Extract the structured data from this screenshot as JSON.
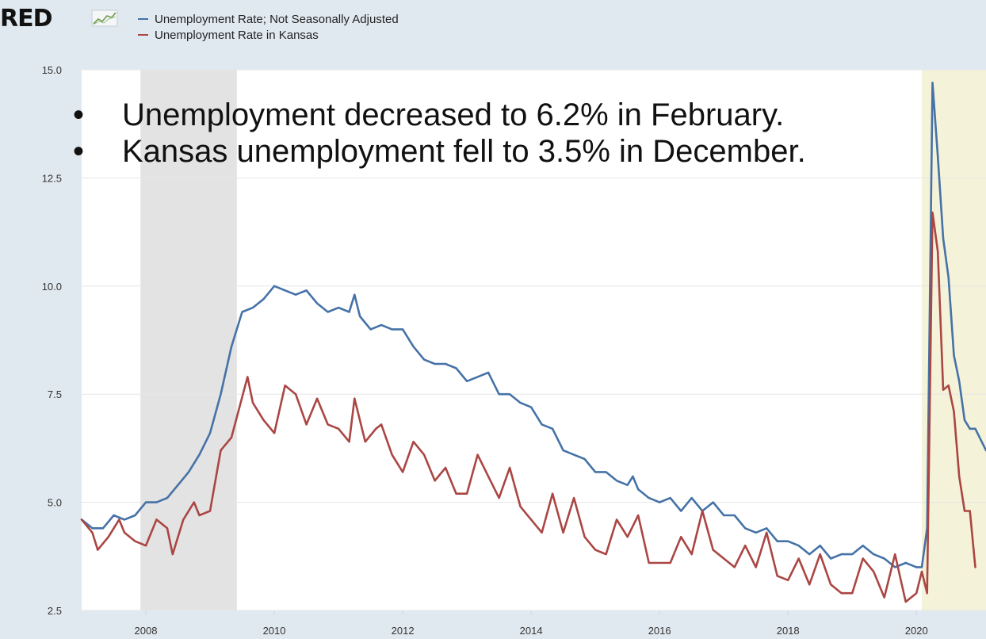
{
  "logo": {
    "text": "RED"
  },
  "legend": [
    {
      "label": "Unemployment Rate; Not Seasonally Adjusted",
      "color": "#4572a7"
    },
    {
      "label": "Unemployment Rate in Kansas",
      "color": "#aa4643"
    }
  ],
  "annotations": [
    "Unemployment decreased to 6.2% in February.",
    "Kansas unemployment fell to 3.5% in December."
  ],
  "chart_data": {
    "type": "line",
    "xlabel": "",
    "ylabel": "",
    "x_range": [
      "2007-01",
      "2021-02"
    ],
    "ylim": [
      2.5,
      15.0
    ],
    "y_ticks": [
      "2.5",
      "5.0",
      "7.5",
      "10.0",
      "12.5",
      "15.0"
    ],
    "x_ticks": [
      "2008",
      "2010",
      "2012",
      "2014",
      "2016",
      "2018",
      "2020"
    ],
    "grid": true,
    "recessions": [
      {
        "start": "2007-12",
        "end": "2009-06",
        "color": "#e3e3e3"
      },
      {
        "start": "2020-02",
        "end": "2021-02",
        "color": "#f4f2d9"
      }
    ],
    "series": [
      {
        "name": "Unemployment Rate; Not Seasonally Adjusted",
        "color": "#4572a7",
        "points": [
          [
            "2007-01",
            4.6
          ],
          [
            "2007-03",
            4.4
          ],
          [
            "2007-05",
            4.4
          ],
          [
            "2007-07",
            4.7
          ],
          [
            "2007-09",
            4.6
          ],
          [
            "2007-11",
            4.7
          ],
          [
            "2008-01",
            5.0
          ],
          [
            "2008-03",
            5.0
          ],
          [
            "2008-05",
            5.1
          ],
          [
            "2008-07",
            5.4
          ],
          [
            "2008-09",
            5.7
          ],
          [
            "2008-11",
            6.1
          ],
          [
            "2009-01",
            6.6
          ],
          [
            "2009-03",
            7.5
          ],
          [
            "2009-05",
            8.6
          ],
          [
            "2009-07",
            9.4
          ],
          [
            "2009-09",
            9.5
          ],
          [
            "2009-11",
            9.7
          ],
          [
            "2010-01",
            10.0
          ],
          [
            "2010-03",
            9.9
          ],
          [
            "2010-05",
            9.8
          ],
          [
            "2010-07",
            9.9
          ],
          [
            "2010-09",
            9.6
          ],
          [
            "2010-11",
            9.4
          ],
          [
            "2011-01",
            9.5
          ],
          [
            "2011-03",
            9.4
          ],
          [
            "2011-04",
            9.8
          ],
          [
            "2011-05",
            9.3
          ],
          [
            "2011-07",
            9.0
          ],
          [
            "2011-09",
            9.1
          ],
          [
            "2011-11",
            9.0
          ],
          [
            "2012-01",
            9.0
          ],
          [
            "2012-03",
            8.6
          ],
          [
            "2012-05",
            8.3
          ],
          [
            "2012-07",
            8.2
          ],
          [
            "2012-09",
            8.2
          ],
          [
            "2012-11",
            8.1
          ],
          [
            "2013-01",
            7.8
          ],
          [
            "2013-03",
            7.9
          ],
          [
            "2013-05",
            8.0
          ],
          [
            "2013-07",
            7.5
          ],
          [
            "2013-09",
            7.5
          ],
          [
            "2013-11",
            7.3
          ],
          [
            "2014-01",
            7.2
          ],
          [
            "2014-03",
            6.8
          ],
          [
            "2014-05",
            6.7
          ],
          [
            "2014-07",
            6.2
          ],
          [
            "2014-09",
            6.1
          ],
          [
            "2014-11",
            6.0
          ],
          [
            "2015-01",
            5.7
          ],
          [
            "2015-03",
            5.7
          ],
          [
            "2015-05",
            5.5
          ],
          [
            "2015-07",
            5.4
          ],
          [
            "2015-08",
            5.6
          ],
          [
            "2015-09",
            5.3
          ],
          [
            "2015-11",
            5.1
          ],
          [
            "2016-01",
            5.0
          ],
          [
            "2016-03",
            5.1
          ],
          [
            "2016-05",
            4.8
          ],
          [
            "2016-07",
            5.1
          ],
          [
            "2016-09",
            4.8
          ],
          [
            "2016-11",
            5.0
          ],
          [
            "2017-01",
            4.7
          ],
          [
            "2017-03",
            4.7
          ],
          [
            "2017-05",
            4.4
          ],
          [
            "2017-07",
            4.3
          ],
          [
            "2017-09",
            4.4
          ],
          [
            "2017-11",
            4.1
          ],
          [
            "2018-01",
            4.1
          ],
          [
            "2018-03",
            4.0
          ],
          [
            "2018-05",
            3.8
          ],
          [
            "2018-07",
            4.0
          ],
          [
            "2018-09",
            3.7
          ],
          [
            "2018-11",
            3.8
          ],
          [
            "2019-01",
            3.8
          ],
          [
            "2019-03",
            4.0
          ],
          [
            "2019-05",
            3.8
          ],
          [
            "2019-07",
            3.7
          ],
          [
            "2019-09",
            3.5
          ],
          [
            "2019-11",
            3.6
          ],
          [
            "2020-01",
            3.5
          ],
          [
            "2020-02",
            3.5
          ],
          [
            "2020-03",
            4.4
          ],
          [
            "2020-04",
            14.7
          ],
          [
            "2020-05",
            13.0
          ],
          [
            "2020-06",
            11.1
          ],
          [
            "2020-07",
            10.2
          ],
          [
            "2020-08",
            8.4
          ],
          [
            "2020-09",
            7.8
          ],
          [
            "2020-10",
            6.9
          ],
          [
            "2020-11",
            6.7
          ],
          [
            "2020-12",
            6.7
          ],
          [
            "2021-02",
            6.2
          ]
        ]
      },
      {
        "name": "Unemployment Rate in Kansas",
        "color": "#aa4643",
        "points": [
          [
            "2007-01",
            4.6
          ],
          [
            "2007-03",
            4.3
          ],
          [
            "2007-04",
            3.9
          ],
          [
            "2007-06",
            4.2
          ],
          [
            "2007-08",
            4.6
          ],
          [
            "2007-09",
            4.3
          ],
          [
            "2007-11",
            4.1
          ],
          [
            "2008-01",
            4.0
          ],
          [
            "2008-03",
            4.6
          ],
          [
            "2008-05",
            4.4
          ],
          [
            "2008-06",
            3.8
          ],
          [
            "2008-08",
            4.6
          ],
          [
            "2008-10",
            5.0
          ],
          [
            "2008-11",
            4.7
          ],
          [
            "2009-01",
            4.8
          ],
          [
            "2009-03",
            6.2
          ],
          [
            "2009-05",
            6.5
          ],
          [
            "2009-08",
            7.9
          ],
          [
            "2009-09",
            7.3
          ],
          [
            "2009-11",
            6.9
          ],
          [
            "2010-01",
            6.6
          ],
          [
            "2010-03",
            7.7
          ],
          [
            "2010-05",
            7.5
          ],
          [
            "2010-07",
            6.8
          ],
          [
            "2010-09",
            7.4
          ],
          [
            "2010-11",
            6.8
          ],
          [
            "2011-01",
            6.7
          ],
          [
            "2011-03",
            6.4
          ],
          [
            "2011-04",
            7.4
          ],
          [
            "2011-06",
            6.4
          ],
          [
            "2011-08",
            6.7
          ],
          [
            "2011-09",
            6.8
          ],
          [
            "2011-11",
            6.1
          ],
          [
            "2012-01",
            5.7
          ],
          [
            "2012-03",
            6.4
          ],
          [
            "2012-05",
            6.1
          ],
          [
            "2012-07",
            5.5
          ],
          [
            "2012-09",
            5.8
          ],
          [
            "2012-11",
            5.2
          ],
          [
            "2013-01",
            5.2
          ],
          [
            "2013-03",
            6.1
          ],
          [
            "2013-05",
            5.6
          ],
          [
            "2013-07",
            5.1
          ],
          [
            "2013-09",
            5.8
          ],
          [
            "2013-11",
            4.9
          ],
          [
            "2014-01",
            4.6
          ],
          [
            "2014-03",
            4.3
          ],
          [
            "2014-05",
            5.2
          ],
          [
            "2014-07",
            4.3
          ],
          [
            "2014-09",
            5.1
          ],
          [
            "2014-11",
            4.2
          ],
          [
            "2015-01",
            3.9
          ],
          [
            "2015-03",
            3.8
          ],
          [
            "2015-05",
            4.6
          ],
          [
            "2015-07",
            4.2
          ],
          [
            "2015-09",
            4.7
          ],
          [
            "2015-11",
            3.6
          ],
          [
            "2016-01",
            3.6
          ],
          [
            "2016-03",
            3.6
          ],
          [
            "2016-05",
            4.2
          ],
          [
            "2016-07",
            3.8
          ],
          [
            "2016-09",
            4.8
          ],
          [
            "2016-11",
            3.9
          ],
          [
            "2017-01",
            3.7
          ],
          [
            "2017-03",
            3.5
          ],
          [
            "2017-05",
            4.0
          ],
          [
            "2017-07",
            3.5
          ],
          [
            "2017-09",
            4.3
          ],
          [
            "2017-11",
            3.3
          ],
          [
            "2018-01",
            3.2
          ],
          [
            "2018-03",
            3.7
          ],
          [
            "2018-05",
            3.1
          ],
          [
            "2018-07",
            3.8
          ],
          [
            "2018-09",
            3.1
          ],
          [
            "2018-11",
            2.9
          ],
          [
            "2019-01",
            2.9
          ],
          [
            "2019-03",
            3.7
          ],
          [
            "2019-05",
            3.4
          ],
          [
            "2019-07",
            2.8
          ],
          [
            "2019-09",
            3.8
          ],
          [
            "2019-11",
            2.7
          ],
          [
            "2020-01",
            2.9
          ],
          [
            "2020-02",
            3.4
          ],
          [
            "2020-03",
            2.9
          ],
          [
            "2020-04",
            11.7
          ],
          [
            "2020-05",
            10.8
          ],
          [
            "2020-06",
            7.6
          ],
          [
            "2020-07",
            7.7
          ],
          [
            "2020-08",
            7.1
          ],
          [
            "2020-09",
            5.6
          ],
          [
            "2020-10",
            4.8
          ],
          [
            "2020-11",
            4.8
          ],
          [
            "2020-12",
            3.5
          ]
        ]
      }
    ]
  }
}
